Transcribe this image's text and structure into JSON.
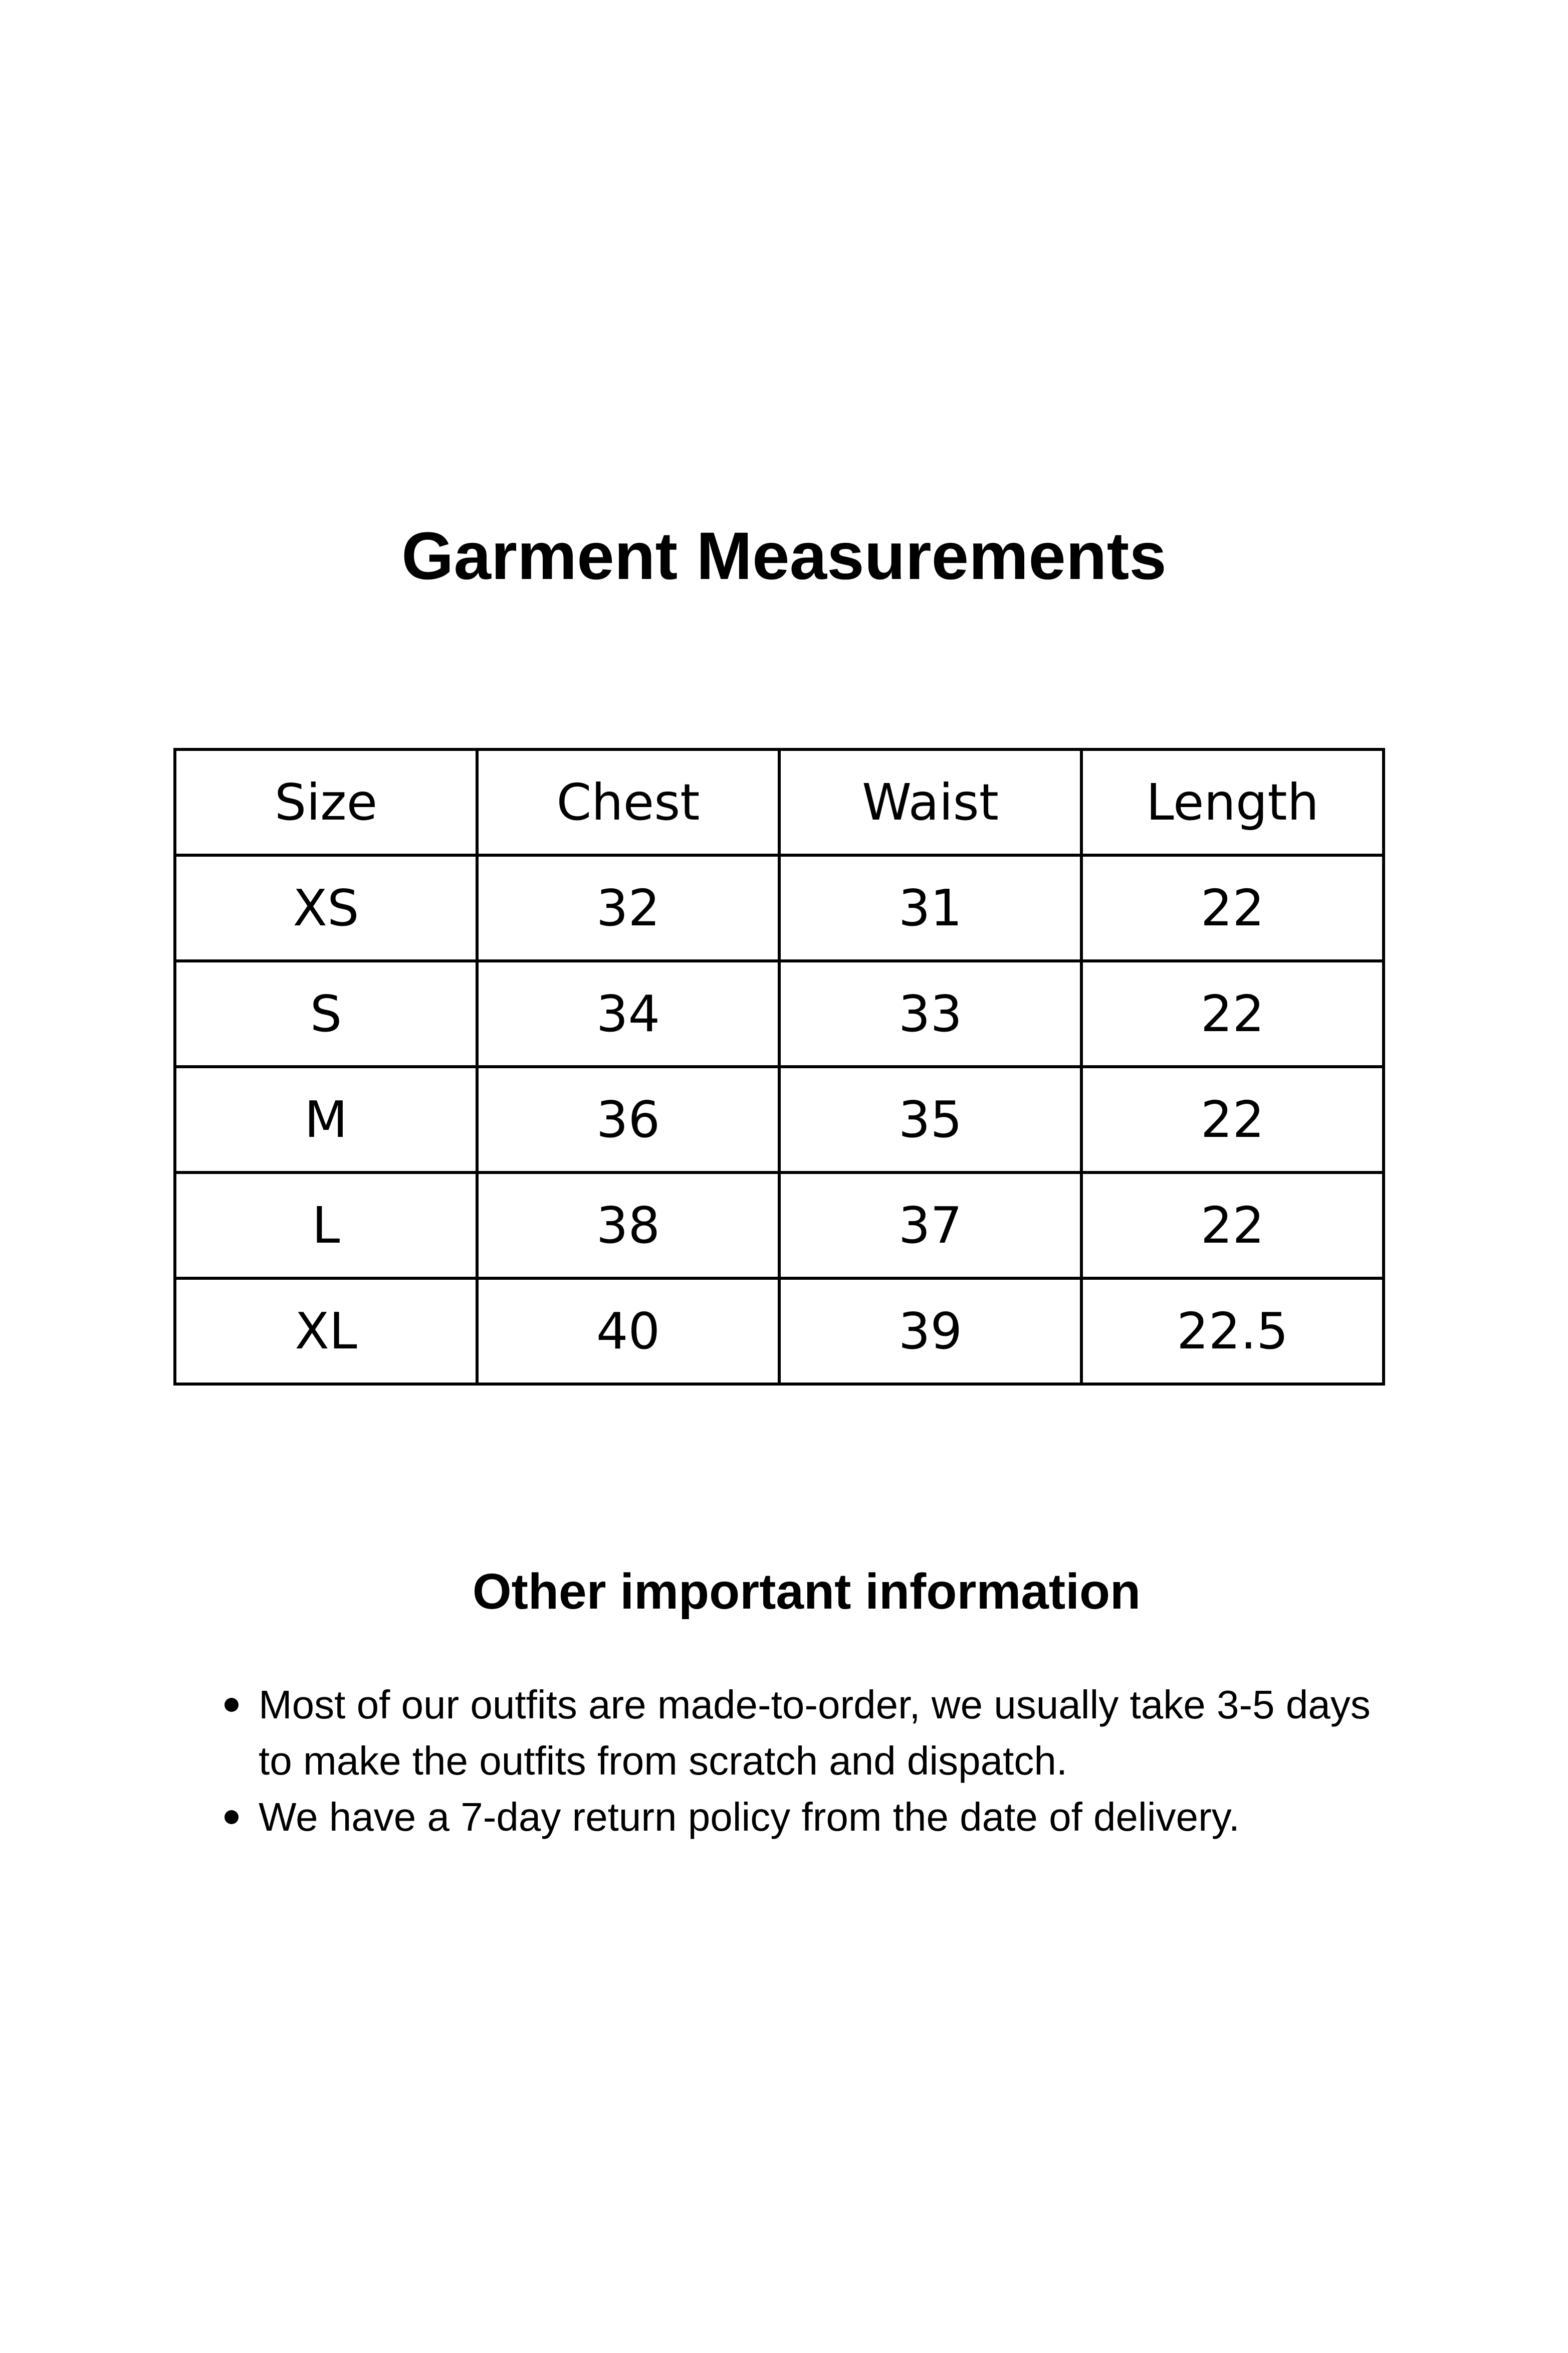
{
  "title": "Garment Measurements",
  "table": {
    "headers": [
      "Size",
      "Chest",
      "Waist",
      "Length"
    ],
    "rows": [
      [
        "XS",
        "32",
        "31",
        "22"
      ],
      [
        "S",
        "34",
        "33",
        "22"
      ],
      [
        "M",
        "36",
        "35",
        "22"
      ],
      [
        "L",
        "38",
        "37",
        "22"
      ],
      [
        "XL",
        "40",
        "39",
        "22.5"
      ]
    ]
  },
  "info": {
    "heading": "Other important information",
    "bullets": [
      "Most of our outfits are made-to-order, we usually take 3-5 days to make the outfits from scratch and dispatch.",
      "We have a 7-day return policy from the date of delivery."
    ]
  }
}
